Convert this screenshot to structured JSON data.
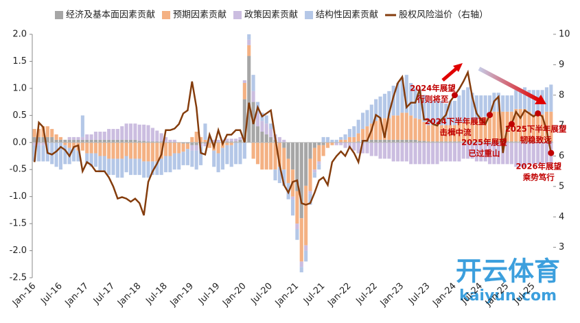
{
  "chart_data": {
    "type": "bar-line",
    "categories": [
      "Jan-16",
      null,
      null,
      null,
      null,
      null,
      "Jul-16",
      null,
      null,
      null,
      null,
      null,
      "Jan-17",
      null,
      null,
      null,
      null,
      null,
      "Jul-17",
      null,
      null,
      null,
      null,
      null,
      "Jan-18",
      null,
      null,
      null,
      null,
      null,
      "Jul-18",
      null,
      null,
      null,
      null,
      null,
      "Jan-19",
      null,
      null,
      null,
      null,
      null,
      "Jul-19",
      null,
      null,
      null,
      null,
      null,
      "Jan-20",
      null,
      null,
      null,
      null,
      null,
      "Jul-20",
      null,
      null,
      null,
      null,
      null,
      "Jan-21",
      null,
      null,
      null,
      null,
      null,
      "Jul-21",
      null,
      null,
      null,
      null,
      null,
      "Jan-22",
      null,
      null,
      null,
      null,
      null,
      "Jul-22",
      null,
      null,
      null,
      null,
      null,
      "Jan-23",
      null,
      null,
      null,
      null,
      null,
      "Jul-23",
      null,
      null,
      null,
      null,
      null,
      "Jan-24",
      null,
      null,
      null,
      null,
      null,
      "Jul-24",
      null,
      null,
      null,
      null,
      null,
      "Jan-25",
      null,
      null,
      null,
      null,
      null,
      "Jul-25",
      null,
      null,
      null,
      null
    ],
    "series": [
      {
        "name": "经济及基本面因素贡献",
        "color": "#a6a6a6",
        "values": [
          0.1,
          0.1,
          0.1,
          0.1,
          0.1,
          0.05,
          0.05,
          0.05,
          0.05,
          0.05,
          0.05,
          0.05,
          0.05,
          0.05,
          0.05,
          0.05,
          0.05,
          0.05,
          0.05,
          0.05,
          0.05,
          0.05,
          0.05,
          0.05,
          0.03,
          0.03,
          0.02,
          0.02,
          0.02,
          0.02,
          0,
          0,
          0,
          0,
          -0.02,
          -0.02,
          -0.05,
          -0.05,
          -0.02,
          -0.02,
          0,
          0,
          0,
          0,
          0.02,
          0.02,
          0.02,
          0.05,
          0.8,
          1.6,
          0.75,
          0.3,
          0.2,
          0.15,
          0.1,
          0.05,
          0,
          -0.1,
          -0.3,
          -0.5,
          -0.9,
          -1.4,
          -0.8,
          -0.3,
          -0.1,
          -0.05,
          -0.05,
          0,
          0,
          0,
          0,
          0,
          0,
          0,
          0.02,
          0.05,
          0.05,
          0.05,
          0.05,
          0.05,
          0.05,
          0.05,
          0.05,
          0.05,
          0.05,
          0.05,
          0.05,
          0.05,
          0.03,
          0.03,
          0.02,
          0.02,
          0.02,
          0.02,
          0.02,
          0.02,
          0.02,
          0.02,
          0.02,
          0.02,
          0.02,
          0.02,
          0.02,
          0.02,
          0.02,
          0.02,
          0.02,
          0.02,
          0.02,
          0.02,
          0.02,
          0.02,
          0.02,
          0.02,
          0.02,
          0.02,
          0.02,
          0.02,
          0.02
        ]
      },
      {
        "name": "预期因素贡献",
        "color": "#f4b183",
        "values": [
          0.15,
          0.15,
          0.2,
          0.2,
          0.15,
          0.1,
          0.05,
          -0.05,
          -0.1,
          -0.1,
          -0.15,
          -0.15,
          -0.2,
          -0.2,
          -0.2,
          -0.25,
          -0.25,
          -0.3,
          -0.3,
          -0.3,
          -0.3,
          -0.25,
          -0.3,
          -0.3,
          -0.3,
          -0.35,
          -0.35,
          -0.35,
          -0.35,
          -0.3,
          -0.25,
          -0.25,
          -0.2,
          -0.2,
          -0.15,
          -0.1,
          0.1,
          0.2,
          0.1,
          0.05,
          -0.1,
          -0.15,
          -0.2,
          -0.1,
          -0.05,
          -0.05,
          0,
          0,
          0.3,
          0.2,
          -0.3,
          -0.4,
          -0.5,
          -0.5,
          -0.5,
          -0.5,
          -0.45,
          -0.4,
          -0.45,
          -0.5,
          -0.6,
          -0.8,
          -1.1,
          -0.6,
          -0.4,
          -0.3,
          -0.2,
          -0.1,
          -0.05,
          0,
          0.05,
          0.05,
          0.1,
          0.1,
          0.15,
          0.2,
          0.25,
          0.3,
          0.35,
          0.4,
          0.4,
          0.4,
          0.45,
          0.45,
          0.5,
          0.5,
          0.45,
          0.4,
          0.4,
          0.35,
          0.3,
          0.3,
          0.3,
          0.3,
          0.3,
          0.3,
          0.3,
          0.35,
          0.35,
          0.4,
          0.4,
          0.4,
          0.45,
          0.45,
          0.5,
          0.55,
          0.55,
          0.55,
          0.55,
          0.55,
          0.6,
          0.6,
          0.6,
          0.55,
          0.5,
          0.5,
          0.5,
          0.55,
          0.55
        ]
      },
      {
        "name": "政策因素贡献",
        "color": "#cbbde0",
        "values": [
          -0.05,
          -0.05,
          -0.05,
          0,
          0,
          0,
          0,
          0,
          0.05,
          0.05,
          0.05,
          0.05,
          0.1,
          0.1,
          0.15,
          0.15,
          0.15,
          0.2,
          0.2,
          0.2,
          0.25,
          0.3,
          0.3,
          0.3,
          0.3,
          0.3,
          0.3,
          0.25,
          0.2,
          0.15,
          0.1,
          0.05,
          0.05,
          0,
          0,
          0,
          -0.1,
          -0.1,
          -0.05,
          -0.05,
          0,
          0.05,
          0.05,
          0.05,
          0.05,
          0.05,
          0.05,
          0.05,
          0.05,
          0.1,
          0.2,
          0.25,
          0.2,
          0.2,
          0.15,
          0.1,
          0.1,
          0.05,
          0,
          -0.05,
          -0.1,
          -0.1,
          -0.1,
          -0.05,
          -0.05,
          -0.05,
          0,
          0,
          0,
          -0.05,
          -0.05,
          -0.1,
          -0.1,
          -0.15,
          -0.2,
          -0.2,
          -0.2,
          -0.25,
          -0.25,
          -0.3,
          -0.3,
          -0.3,
          -0.35,
          -0.35,
          -0.35,
          -0.35,
          -0.4,
          -0.4,
          -0.4,
          -0.4,
          -0.4,
          -0.4,
          -0.4,
          -0.35,
          -0.35,
          -0.35,
          -0.35,
          -0.35,
          -0.3,
          -0.3,
          -0.3,
          -0.35,
          -0.35,
          -0.35,
          -0.4,
          -0.4,
          -0.4,
          -0.4,
          -0.4,
          -0.4,
          -0.45,
          -0.45,
          -0.45,
          -0.4,
          -0.4,
          -0.4,
          -0.4,
          -0.4,
          -0.4
        ]
      },
      {
        "name": "结构性因素贡献",
        "color": "#b4c7e7",
        "values": [
          -0.3,
          -0.3,
          -0.3,
          -0.35,
          -0.4,
          -0.45,
          -0.5,
          -0.35,
          -0.3,
          -0.25,
          -0.2,
          0.4,
          -0.2,
          -0.25,
          -0.25,
          -0.3,
          -0.3,
          -0.3,
          -0.3,
          -0.35,
          -0.35,
          -0.3,
          -0.3,
          -0.3,
          -0.3,
          -0.3,
          -0.3,
          -0.25,
          -0.25,
          -0.3,
          -0.3,
          -0.3,
          -0.3,
          -0.3,
          -0.25,
          -0.3,
          -0.3,
          -0.35,
          -0.35,
          0.3,
          0.1,
          -0.3,
          -0.35,
          -0.4,
          -0.35,
          -0.4,
          -0.4,
          -0.4,
          -0.3,
          0.1,
          0.3,
          0.2,
          0.15,
          0.15,
          0.1,
          -0.2,
          -0.3,
          -0.3,
          -0.3,
          -0.3,
          -0.2,
          -0.1,
          -0.2,
          -0.2,
          -0.1,
          -0.1,
          0.1,
          0.1,
          0.05,
          0.05,
          0.05,
          0.1,
          0.15,
          0.2,
          0.25,
          0.3,
          0.3,
          0.35,
          0.4,
          0.4,
          0.45,
          0.5,
          0.55,
          0.6,
          0.65,
          0.7,
          0.6,
          0.55,
          0.55,
          0.5,
          0.45,
          0.45,
          0.45,
          0.45,
          0.4,
          0.45,
          0.45,
          0.5,
          0.6,
          0.6,
          0.5,
          0.45,
          0.4,
          0.4,
          0.35,
          0.35,
          0.35,
          0.3,
          0.3,
          0.3,
          0.35,
          0.35,
          0.4,
          0.4,
          0.45,
          0.45,
          0.45,
          0.45,
          0.5
        ]
      },
      {
        "name": "股权风险溢价（右轴）",
        "color": "#843c0c",
        "axis": "y2",
        "type": "line",
        "values": [
          5.8,
          7.1,
          6.95,
          6.1,
          6.05,
          6.15,
          6.3,
          6.2,
          6.0,
          6.3,
          6.35,
          5.5,
          5.8,
          5.7,
          5.5,
          5.5,
          5.5,
          5.3,
          5.0,
          4.6,
          4.65,
          4.6,
          4.5,
          4.6,
          4.45,
          4.05,
          5.15,
          5.5,
          5.75,
          6.05,
          6.85,
          6.85,
          6.9,
          7.05,
          7.4,
          7.5,
          8.45,
          7.6,
          6.1,
          6.05,
          6.7,
          6.3,
          6.85,
          6.4,
          6.7,
          6.7,
          6.85,
          6.85,
          6.45,
          7.75,
          7.05,
          7.6,
          7.3,
          7.4,
          7.5,
          6.6,
          5.7,
          5.05,
          4.8,
          5.15,
          5.2,
          4.45,
          4.4,
          4.45,
          4.8,
          5.2,
          5.3,
          5.05,
          5.8,
          6.0,
          6.15,
          6.0,
          6.3,
          6.1,
          5.8,
          6.5,
          6.5,
          6.85,
          7.35,
          7.25,
          6.6,
          7.4,
          7.95,
          8.4,
          8.6,
          7.6,
          7.75,
          7.75,
          8.2,
          7.2,
          7.2,
          7.05,
          7.0,
          7.2,
          7.35,
          7.8,
          8.0,
          8.2,
          8.45,
          8.75,
          7.95,
          7.4,
          7.2,
          7.05,
          7.35,
          7.8,
          7.95,
          6.1,
          6.95,
          7.05,
          7.45,
          7.25,
          7.5,
          7.4,
          7.3,
          7.4,
          7.3,
          6.85,
          6.1
        ]
      }
    ],
    "ylim": [
      -2.5,
      2.0
    ],
    "yticks": [
      {
        "value": -2.5,
        "label": "-2.5"
      },
      {
        "value": -2,
        "label": "-2.0"
      },
      {
        "value": -1.5,
        "label": "-1.5"
      },
      {
        "value": -1,
        "label": "-1.0"
      },
      {
        "value": -0.5,
        "label": "-0.5"
      },
      {
        "value": 0,
        "label": "0.0"
      },
      {
        "value": 0.5,
        "label": "0.5"
      },
      {
        "value": 1,
        "label": "1.0"
      },
      {
        "value": 1.5,
        "label": "1.5"
      },
      {
        "value": 2,
        "label": "2.0"
      }
    ],
    "y2lim": [
      2,
      10
    ],
    "y2ticks": [
      3,
      4,
      5,
      6,
      7,
      8,
      9,
      10
    ],
    "annotations": [
      {
        "lines": [
          "2024年展望",
          "行则将至"
        ],
        "index": 96
      },
      {
        "lines": [
          "2024下半年展望",
          "击楫中流"
        ],
        "index": 104
      },
      {
        "lines": [
          "2025年展望",
          "已过重山"
        ],
        "index": 109
      },
      {
        "lines": [
          "2025下半年展望",
          "韧稳致远"
        ],
        "index": 115
      },
      {
        "lines": [
          "2026年展望",
          "乘势笃行"
        ],
        "index": 118
      }
    ],
    "annotation_color": "#c00000",
    "watermark": [
      "开云体育",
      "kaiyun.com"
    ]
  }
}
